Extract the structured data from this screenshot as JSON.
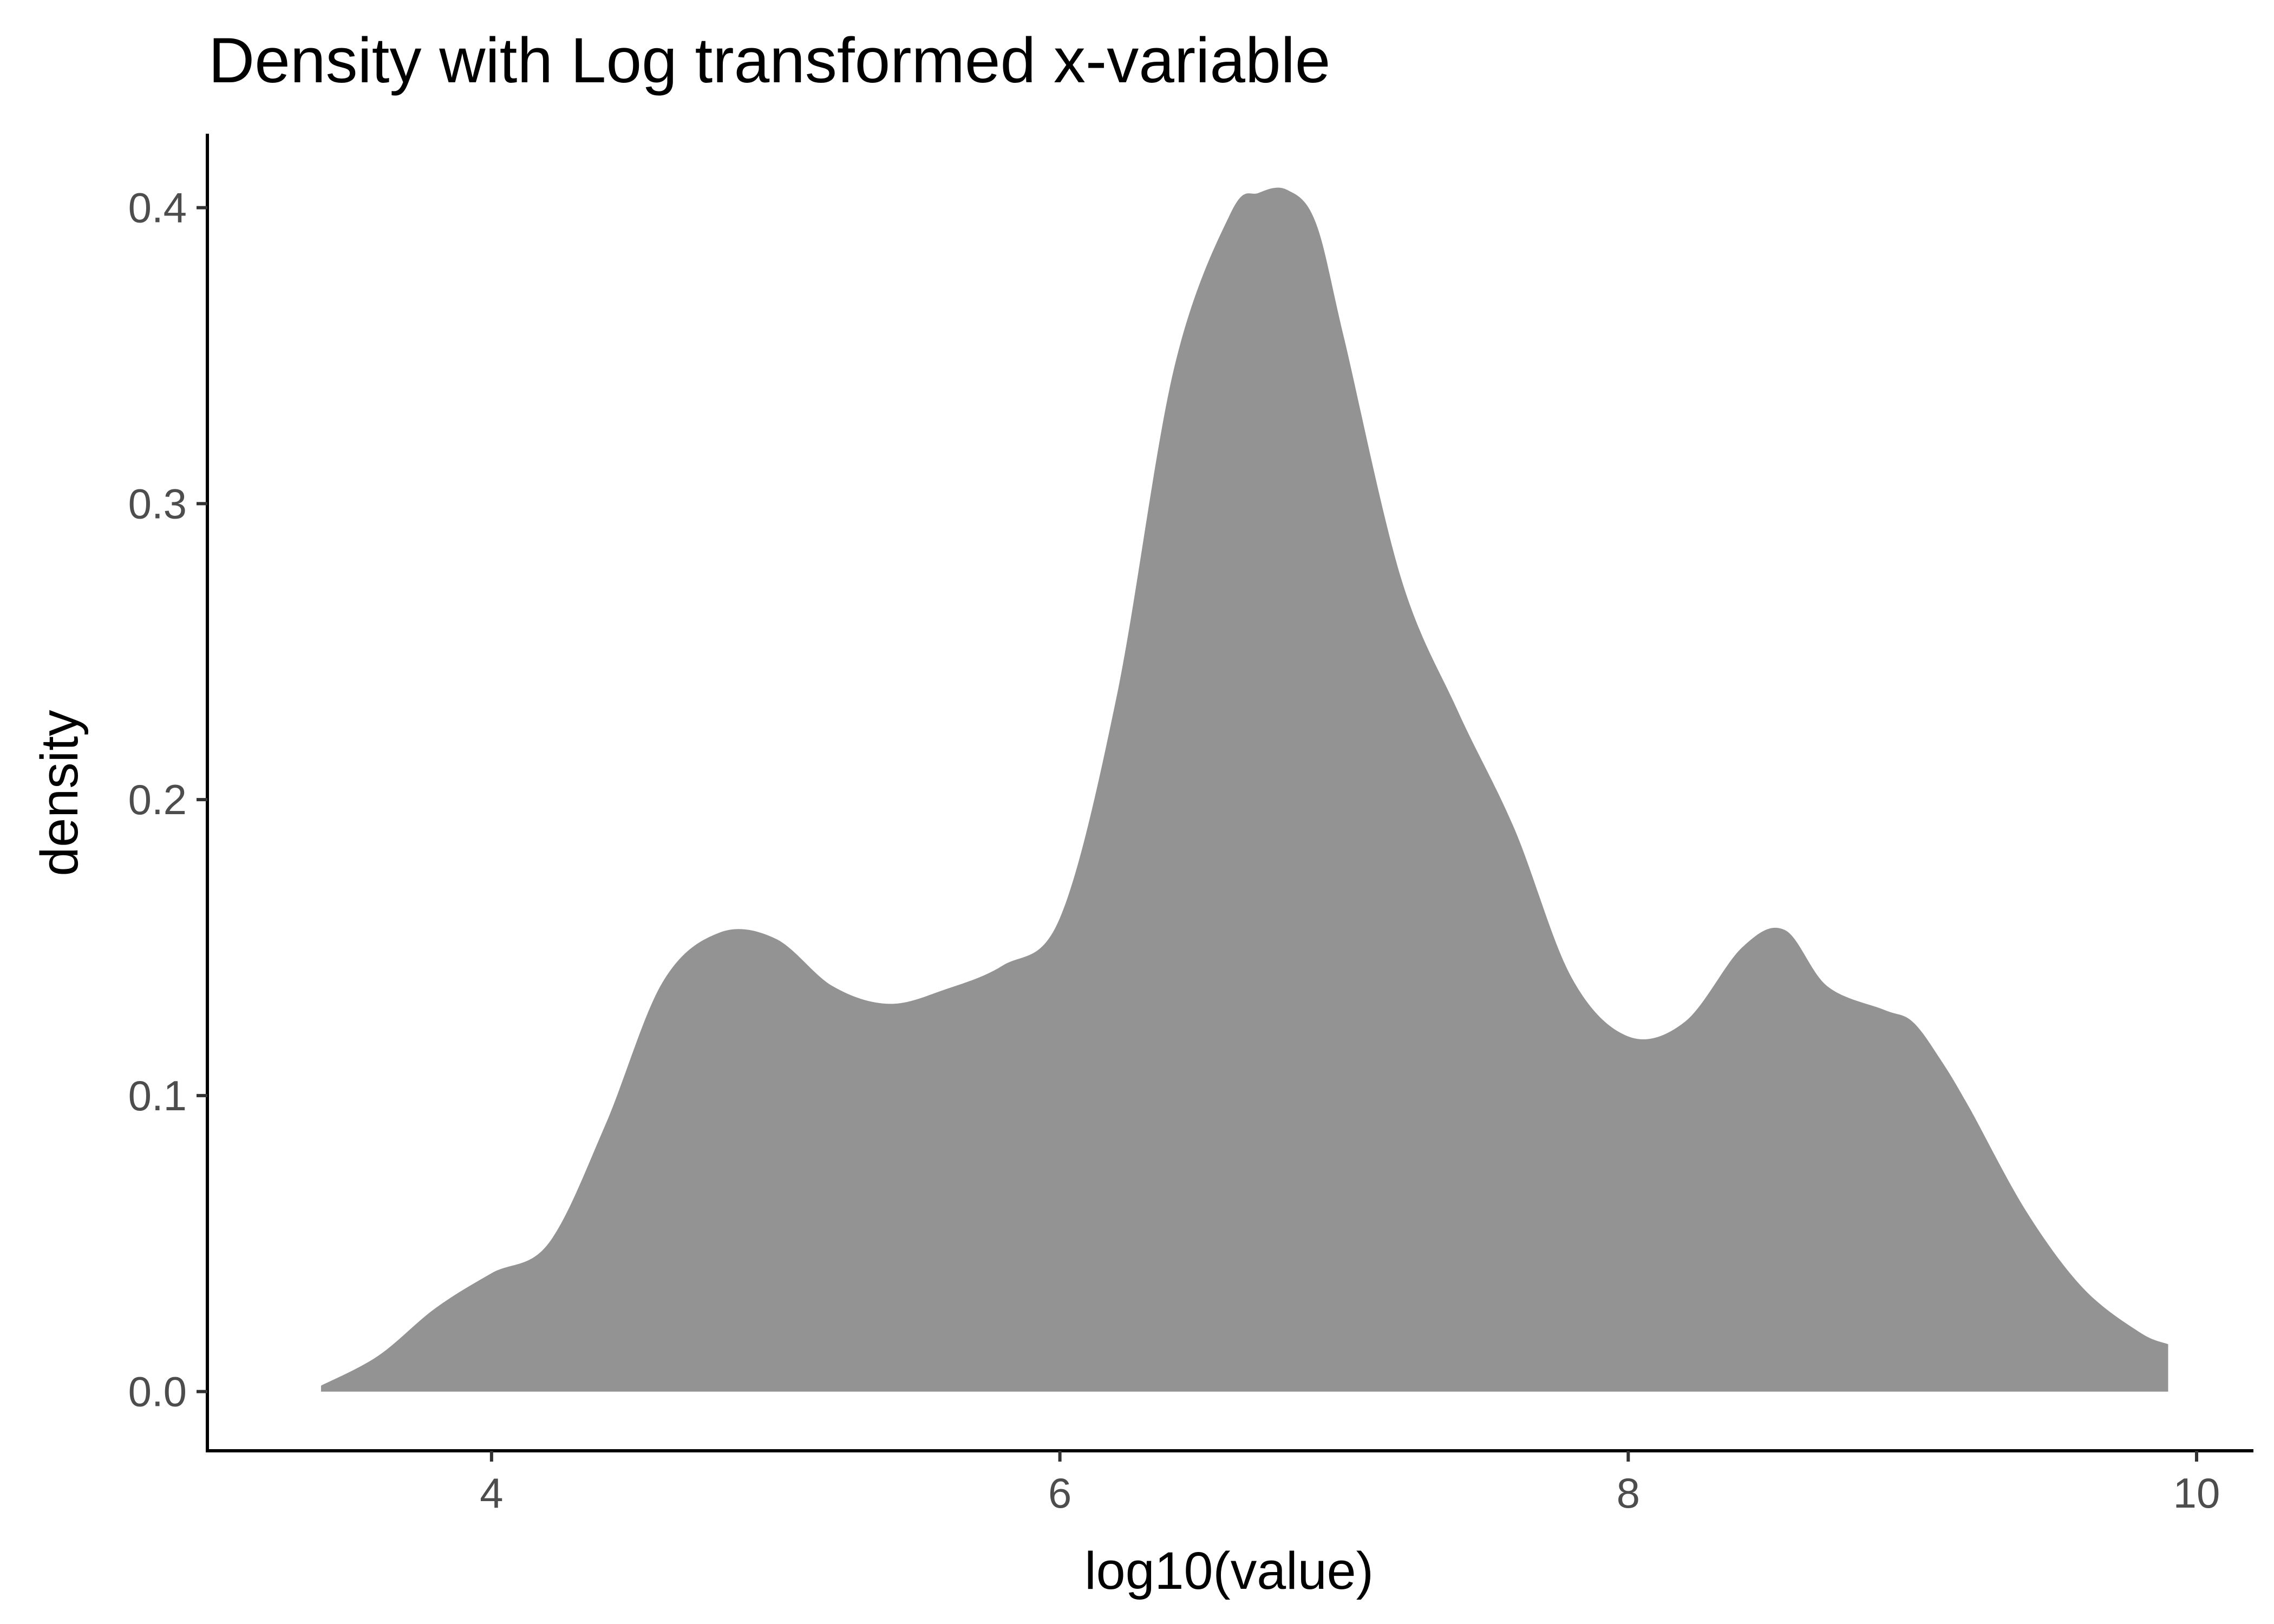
{
  "chart_data": {
    "type": "area",
    "title": "Density with Log transformed x-variable",
    "xlabel": "log10(value)",
    "ylabel": "density",
    "xlim": [
      3.0,
      10.2
    ],
    "ylim": [
      -0.02,
      0.425
    ],
    "x_ticks": [
      4,
      6,
      8,
      10
    ],
    "x_tick_labels": [
      "4",
      "6",
      "8",
      "10"
    ],
    "y_ticks": [
      0.0,
      0.1,
      0.2,
      0.3,
      0.4
    ],
    "y_tick_labels": [
      "0.0",
      "0.1",
      "0.2",
      "0.3",
      "0.4"
    ],
    "fill_color": "#939393",
    "grid": false,
    "series": [
      {
        "x": [
          3.4,
          3.6,
          3.8,
          4.0,
          4.2,
          4.4,
          4.6,
          4.8,
          5.0,
          5.2,
          5.4,
          5.6,
          5.8,
          6.0,
          6.2,
          6.4,
          6.6,
          6.7,
          6.8,
          6.9,
          7.0,
          7.2,
          7.4,
          7.6,
          7.8,
          8.0,
          8.2,
          8.4,
          8.55,
          8.7,
          8.9,
          9.0,
          9.1,
          9.2,
          9.4,
          9.6,
          9.8,
          9.9
        ],
        "y": [
          0.002,
          0.012,
          0.028,
          0.04,
          0.05,
          0.09,
          0.138,
          0.155,
          0.153,
          0.137,
          0.131,
          0.136,
          0.144,
          0.16,
          0.235,
          0.345,
          0.398,
          0.405,
          0.406,
          0.395,
          0.356,
          0.275,
          0.23,
          0.19,
          0.14,
          0.12,
          0.125,
          0.15,
          0.156,
          0.137,
          0.129,
          0.125,
          0.112,
          0.096,
          0.061,
          0.035,
          0.02,
          0.016
        ]
      }
    ]
  }
}
